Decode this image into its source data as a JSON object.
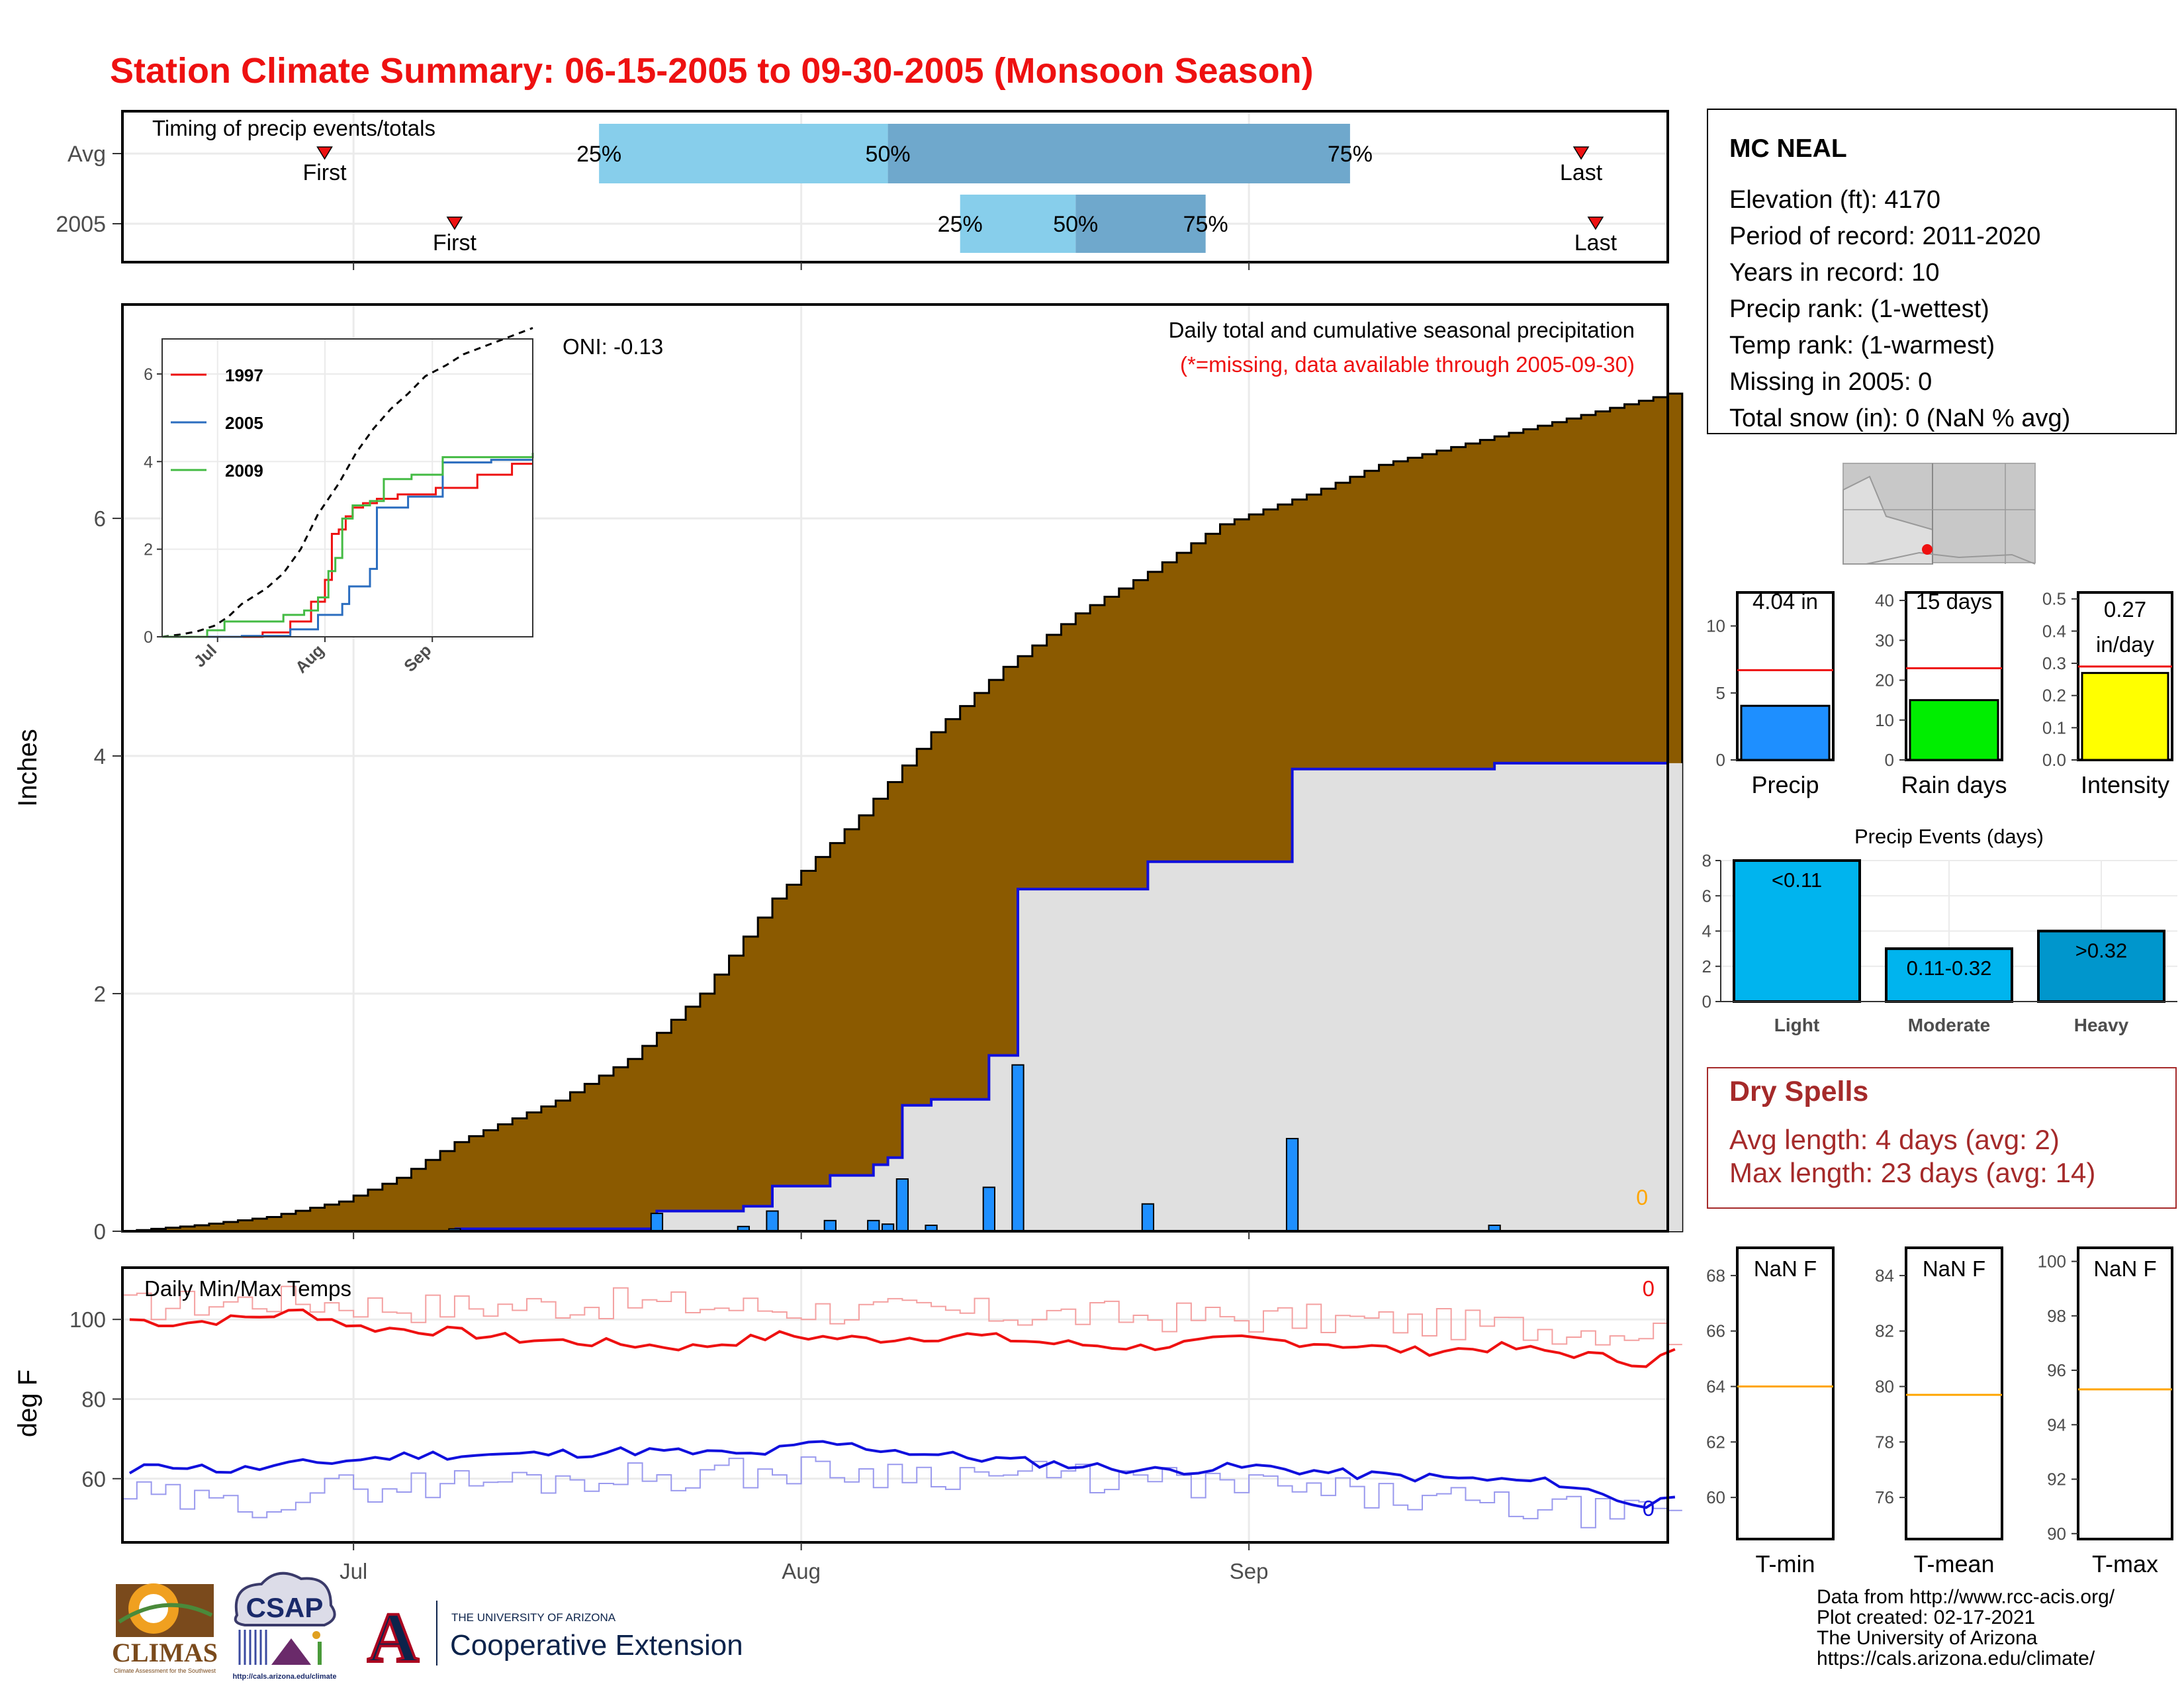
{
  "title": "Station Climate Summary: 06-15-2005 to 09-30-2005 (Monsoon Season)",
  "colors": {
    "title": "#ee1111",
    "brown": "#8b5a00",
    "light_gray": "#e0e0e0",
    "blue_line": "#1010dd",
    "bar_blue": "#1e8fff",
    "red_line": "#ee1111",
    "orange": "#ffa500",
    "dry_spell": "#a52a2a",
    "quartile_light": "#87ceeb",
    "quartile_dark": "#6fa8cc",
    "rain_green": "#00ee00",
    "intensity_yellow": "#ffff00",
    "event_blue": "#00b4ee",
    "event_blue_2": "#0096cc"
  },
  "timing": {
    "title": "Timing of precip events/totals",
    "rows": [
      {
        "label": "Avg",
        "first": "2005-06-29",
        "q25": "2005-07-18",
        "q50": "2005-08-07",
        "q75": "2005-09-08",
        "last": "2005-09-24",
        "q25_label": "25%",
        "q50_label": "50%",
        "q75_label": "75%",
        "first_label": "First",
        "last_label": "Last"
      },
      {
        "label": "2005",
        "first": "2005-07-08",
        "q25": "2005-08-12",
        "q50": "2005-08-20",
        "q75": "2005-08-29",
        "last": "2005-09-25",
        "q25_label": "25%",
        "q50_label": "50%",
        "q75_label": "75%",
        "first_label": "First",
        "last_label": "Last"
      }
    ]
  },
  "chart_data": [
    {
      "id": "main",
      "type": "area",
      "title": "Daily total and cumulative seasonal precipitation",
      "subtitle": "(*=missing, data available through 2005-09-30)",
      "ylabel": "Inches",
      "ylim": [
        0,
        7.8
      ],
      "yticks": [
        0,
        2,
        4,
        6
      ],
      "x_range": [
        "2005-06-15",
        "2005-09-30"
      ],
      "xticks": [
        {
          "label": "Jul",
          "date": "2005-07-01"
        },
        {
          "label": "Aug",
          "date": "2005-08-01"
        },
        {
          "label": "Sep",
          "date": "2005-09-01"
        }
      ],
      "oni_label": "ONI: -0.13",
      "missing_count": "0",
      "avg_cumulative_knots": [
        {
          "date": "2005-06-15",
          "value": 0.0
        },
        {
          "date": "2005-06-20",
          "value": 0.05
        },
        {
          "date": "2005-06-25",
          "value": 0.12
        },
        {
          "date": "2005-06-30",
          "value": 0.25
        },
        {
          "date": "2005-07-04",
          "value": 0.45
        },
        {
          "date": "2005-07-08",
          "value": 0.75
        },
        {
          "date": "2005-07-15",
          "value": 1.1
        },
        {
          "date": "2005-07-20",
          "value": 1.45
        },
        {
          "date": "2005-07-25",
          "value": 2.0
        },
        {
          "date": "2005-07-30",
          "value": 2.8
        },
        {
          "date": "2005-08-05",
          "value": 3.5
        },
        {
          "date": "2005-08-10",
          "value": 4.2
        },
        {
          "date": "2005-08-15",
          "value": 4.75
        },
        {
          "date": "2005-08-20",
          "value": 5.2
        },
        {
          "date": "2005-08-25",
          "value": 5.55
        },
        {
          "date": "2005-08-30",
          "value": 5.95
        },
        {
          "date": "2005-09-05",
          "value": 6.2
        },
        {
          "date": "2005-09-10",
          "value": 6.45
        },
        {
          "date": "2005-09-15",
          "value": 6.6
        },
        {
          "date": "2005-09-20",
          "value": 6.75
        },
        {
          "date": "2005-09-25",
          "value": 6.9
        },
        {
          "date": "2005-09-30",
          "value": 7.05
        }
      ],
      "daily_precip": [
        {
          "date": "2005-07-08",
          "value": 0.02
        },
        {
          "date": "2005-07-22",
          "value": 0.15
        },
        {
          "date": "2005-07-28",
          "value": 0.04
        },
        {
          "date": "2005-07-30",
          "value": 0.17
        },
        {
          "date": "2005-08-03",
          "value": 0.09
        },
        {
          "date": "2005-08-06",
          "value": 0.09
        },
        {
          "date": "2005-08-07",
          "value": 0.06
        },
        {
          "date": "2005-08-08",
          "value": 0.44
        },
        {
          "date": "2005-08-10",
          "value": 0.05
        },
        {
          "date": "2005-08-14",
          "value": 0.37
        },
        {
          "date": "2005-08-16",
          "value": 1.4
        },
        {
          "date": "2005-08-25",
          "value": 0.23
        },
        {
          "date": "2005-09-04",
          "value": 0.78
        },
        {
          "date": "2005-09-18",
          "value": 0.05
        }
      ],
      "cumulative_2005_end": 4.04
    },
    {
      "id": "inset",
      "type": "line",
      "ylim": [
        0,
        6.8
      ],
      "yticks": [
        0,
        2,
        4,
        6
      ],
      "x_range": [
        "2005-06-15",
        "2005-09-30"
      ],
      "xticks": [
        {
          "label": "Jul",
          "date": "2005-07-01"
        },
        {
          "label": "Aug",
          "date": "2005-08-01"
        },
        {
          "label": "Sep",
          "date": "2005-09-01"
        }
      ],
      "series": [
        {
          "name": "1997",
          "color": "#ee1111",
          "points": [
            {
              "date": "2005-06-15",
              "value": 0
            },
            {
              "date": "2005-07-14",
              "value": 0.1
            },
            {
              "date": "2005-07-22",
              "value": 0.35
            },
            {
              "date": "2005-07-28",
              "value": 0.8
            },
            {
              "date": "2005-08-01",
              "value": 1.3
            },
            {
              "date": "2005-08-03",
              "value": 2.35
            },
            {
              "date": "2005-08-05",
              "value": 2.45
            },
            {
              "date": "2005-08-07",
              "value": 2.75
            },
            {
              "date": "2005-08-09",
              "value": 2.95
            },
            {
              "date": "2005-08-12",
              "value": 3.05
            },
            {
              "date": "2005-08-16",
              "value": 3.15
            },
            {
              "date": "2005-08-22",
              "value": 3.25
            },
            {
              "date": "2005-09-02",
              "value": 3.4
            },
            {
              "date": "2005-09-14",
              "value": 3.7
            },
            {
              "date": "2005-09-24",
              "value": 3.95
            },
            {
              "date": "2005-09-30",
              "value": 3.95
            }
          ]
        },
        {
          "name": "2005",
          "color": "#2b6dbf",
          "points": [
            {
              "date": "2005-06-15",
              "value": 0
            },
            {
              "date": "2005-07-08",
              "value": 0.02
            },
            {
              "date": "2005-07-22",
              "value": 0.17
            },
            {
              "date": "2005-07-30",
              "value": 0.5
            },
            {
              "date": "2005-08-06",
              "value": 0.75
            },
            {
              "date": "2005-08-08",
              "value": 1.15
            },
            {
              "date": "2005-08-14",
              "value": 1.55
            },
            {
              "date": "2005-08-16",
              "value": 2.95
            },
            {
              "date": "2005-08-25",
              "value": 3.2
            },
            {
              "date": "2005-09-04",
              "value": 3.98
            },
            {
              "date": "2005-09-18",
              "value": 4.04
            },
            {
              "date": "2005-09-30",
              "value": 4.04
            }
          ]
        },
        {
          "name": "2009",
          "color": "#44bb44",
          "points": [
            {
              "date": "2005-06-15",
              "value": 0
            },
            {
              "date": "2005-06-28",
              "value": 0.15
            },
            {
              "date": "2005-07-03",
              "value": 0.35
            },
            {
              "date": "2005-07-20",
              "value": 0.5
            },
            {
              "date": "2005-07-26",
              "value": 0.6
            },
            {
              "date": "2005-07-30",
              "value": 0.9
            },
            {
              "date": "2005-08-02",
              "value": 1.5
            },
            {
              "date": "2005-08-04",
              "value": 1.8
            },
            {
              "date": "2005-08-06",
              "value": 2.7
            },
            {
              "date": "2005-08-09",
              "value": 3.0
            },
            {
              "date": "2005-08-14",
              "value": 3.1
            },
            {
              "date": "2005-08-18",
              "value": 3.6
            },
            {
              "date": "2005-08-26",
              "value": 3.7
            },
            {
              "date": "2005-09-04",
              "value": 4.1
            },
            {
              "date": "2005-09-30",
              "value": 4.2
            }
          ]
        }
      ]
    },
    {
      "id": "temps",
      "type": "line",
      "title": "Daily Min/Max Temps",
      "ylabel": "deg F",
      "ylim": [
        44,
        113
      ],
      "yticks": [
        60,
        80,
        100
      ],
      "x_range": [
        "2005-06-15",
        "2005-09-30"
      ],
      "xticks": [
        {
          "label": "Jul",
          "date": "2005-07-01"
        },
        {
          "label": "Aug",
          "date": "2005-08-01"
        },
        {
          "label": "Sep",
          "date": "2005-09-01"
        }
      ],
      "max_missing": "0",
      "min_missing": "0",
      "tmax_2005_knots": [
        {
          "date": "2005-06-15",
          "value": 100
        },
        {
          "date": "2005-06-18",
          "value": 99
        },
        {
          "date": "2005-06-22",
          "value": 100
        },
        {
          "date": "2005-06-27",
          "value": 102
        },
        {
          "date": "2005-07-01",
          "value": 98
        },
        {
          "date": "2005-07-07",
          "value": 97
        },
        {
          "date": "2005-07-12",
          "value": 95
        },
        {
          "date": "2005-07-18",
          "value": 94
        },
        {
          "date": "2005-07-24",
          "value": 93
        },
        {
          "date": "2005-07-30",
          "value": 96
        },
        {
          "date": "2005-08-05",
          "value": 95
        },
        {
          "date": "2005-08-12",
          "value": 96
        },
        {
          "date": "2005-08-18",
          "value": 94
        },
        {
          "date": "2005-08-24",
          "value": 93
        },
        {
          "date": "2005-08-31",
          "value": 95
        },
        {
          "date": "2005-09-06",
          "value": 94
        },
        {
          "date": "2005-09-12",
          "value": 92
        },
        {
          "date": "2005-09-18",
          "value": 93
        },
        {
          "date": "2005-09-24",
          "value": 91
        },
        {
          "date": "2005-09-28",
          "value": 89
        },
        {
          "date": "2005-09-30",
          "value": 92
        }
      ],
      "tmax_avg_knots": [
        {
          "date": "2005-06-15",
          "value": 103
        },
        {
          "date": "2005-06-25",
          "value": 105
        },
        {
          "date": "2005-07-05",
          "value": 103
        },
        {
          "date": "2005-07-20",
          "value": 104
        },
        {
          "date": "2005-08-05",
          "value": 102
        },
        {
          "date": "2005-08-20",
          "value": 101
        },
        {
          "date": "2005-09-05",
          "value": 100
        },
        {
          "date": "2005-09-20",
          "value": 98
        },
        {
          "date": "2005-09-30",
          "value": 97
        }
      ],
      "tmin_2005_knots": [
        {
          "date": "2005-06-15",
          "value": 61
        },
        {
          "date": "2005-06-17",
          "value": 64
        },
        {
          "date": "2005-06-22",
          "value": 62
        },
        {
          "date": "2005-06-28",
          "value": 64
        },
        {
          "date": "2005-07-05",
          "value": 66
        },
        {
          "date": "2005-07-12",
          "value": 66
        },
        {
          "date": "2005-07-20",
          "value": 67
        },
        {
          "date": "2005-07-28",
          "value": 66
        },
        {
          "date": "2005-08-02",
          "value": 69
        },
        {
          "date": "2005-08-10",
          "value": 66
        },
        {
          "date": "2005-08-17",
          "value": 64
        },
        {
          "date": "2005-08-25",
          "value": 62
        },
        {
          "date": "2005-09-01",
          "value": 63
        },
        {
          "date": "2005-09-08",
          "value": 61
        },
        {
          "date": "2005-09-15",
          "value": 60
        },
        {
          "date": "2005-09-22",
          "value": 59
        },
        {
          "date": "2005-09-28",
          "value": 53
        },
        {
          "date": "2005-09-30",
          "value": 56
        }
      ],
      "tmin_avg_knots": [
        {
          "date": "2005-06-15",
          "value": 56
        },
        {
          "date": "2005-06-22",
          "value": 53
        },
        {
          "date": "2005-07-01",
          "value": 58
        },
        {
          "date": "2005-07-15",
          "value": 60
        },
        {
          "date": "2005-08-01",
          "value": 62
        },
        {
          "date": "2005-08-15",
          "value": 61
        },
        {
          "date": "2005-09-01",
          "value": 58
        },
        {
          "date": "2005-09-15",
          "value": 54
        },
        {
          "date": "2005-09-30",
          "value": 50
        }
      ]
    },
    {
      "id": "precip_bar",
      "type": "bar",
      "categories": [
        "Precip"
      ],
      "values": [
        4.04
      ],
      "avg": 6.7,
      "ylim": [
        0,
        12.5
      ],
      "yticks": [
        0,
        5,
        10
      ],
      "value_label": "4.04 in"
    },
    {
      "id": "raindays_bar",
      "type": "bar",
      "categories": [
        "Rain days"
      ],
      "values": [
        15
      ],
      "avg": 23,
      "ylim": [
        0,
        42
      ],
      "yticks": [
        0,
        10,
        20,
        30,
        40
      ],
      "value_label": "15 days"
    },
    {
      "id": "intensity_bar",
      "type": "bar",
      "categories": [
        "Intensity"
      ],
      "values": [
        0.27
      ],
      "avg": 0.29,
      "ylim": [
        0,
        0.52
      ],
      "yticks": [
        "0.0",
        "0.1",
        "0.2",
        "0.3",
        "0.4",
        "0.5"
      ],
      "value_label_1": "0.27",
      "value_label_2": "in/day"
    },
    {
      "id": "events_bar",
      "type": "bar",
      "title": "Precip Events (days)",
      "categories": [
        "Light",
        "Moderate",
        "Heavy"
      ],
      "values": [
        8,
        3,
        4
      ],
      "value_labels": [
        "<0.11",
        "0.11-0.32",
        ">0.32"
      ],
      "ylim": [
        0,
        8
      ],
      "yticks": [
        0,
        2,
        4,
        6,
        8
      ]
    },
    {
      "id": "tmin_box",
      "type": "bar",
      "categories": [
        "T-min"
      ],
      "value_label": "NaN F",
      "avg": 64,
      "ylim": [
        58.5,
        69
      ],
      "yticks": [
        60,
        62,
        64,
        66,
        68
      ]
    },
    {
      "id": "tmean_box",
      "type": "bar",
      "categories": [
        "T-mean"
      ],
      "value_label": "NaN F",
      "avg": 79.7,
      "ylim": [
        74.5,
        85
      ],
      "yticks": [
        76,
        78,
        80,
        82,
        84
      ]
    },
    {
      "id": "tmax_box",
      "type": "bar",
      "categories": [
        "T-max"
      ],
      "value_label": "NaN F",
      "avg": 95.3,
      "ylim": [
        89.8,
        100.5
      ],
      "yticks": [
        90,
        92,
        94,
        96,
        98,
        100
      ]
    }
  ],
  "station": {
    "name": "MC NEAL",
    "lines": [
      "Elevation (ft): 4170",
      "Period of record: 2011-2020",
      "Years in record: 10",
      "Precip rank:  (1-wettest)",
      "Temp rank:  (1-warmest)",
      "Missing in 2005: 0",
      "Total snow (in): 0 (NaN % avg)"
    ]
  },
  "dry_spells": {
    "title": "Dry Spells",
    "avg_length": "Avg length: 4 days (avg: 2)",
    "max_length": "Max length: 23 days (avg: 14)"
  },
  "footer": {
    "lines": [
      "Data from http://www.rcc-acis.org/",
      "Plot created: 02-17-2021",
      "The University of Arizona",
      "https://cals.arizona.edu/climate/"
    ]
  },
  "logos": {
    "climas": "CLIMAS",
    "climas_sub": "Climate Assessment for the Southwest",
    "csap": "CSAP",
    "csap_url": "http://cals.arizona.edu/climate",
    "ua_letter": "A",
    "ua_line1": "THE UNIVERSITY OF ARIZONA",
    "ua_line2": "Cooperative Extension"
  }
}
